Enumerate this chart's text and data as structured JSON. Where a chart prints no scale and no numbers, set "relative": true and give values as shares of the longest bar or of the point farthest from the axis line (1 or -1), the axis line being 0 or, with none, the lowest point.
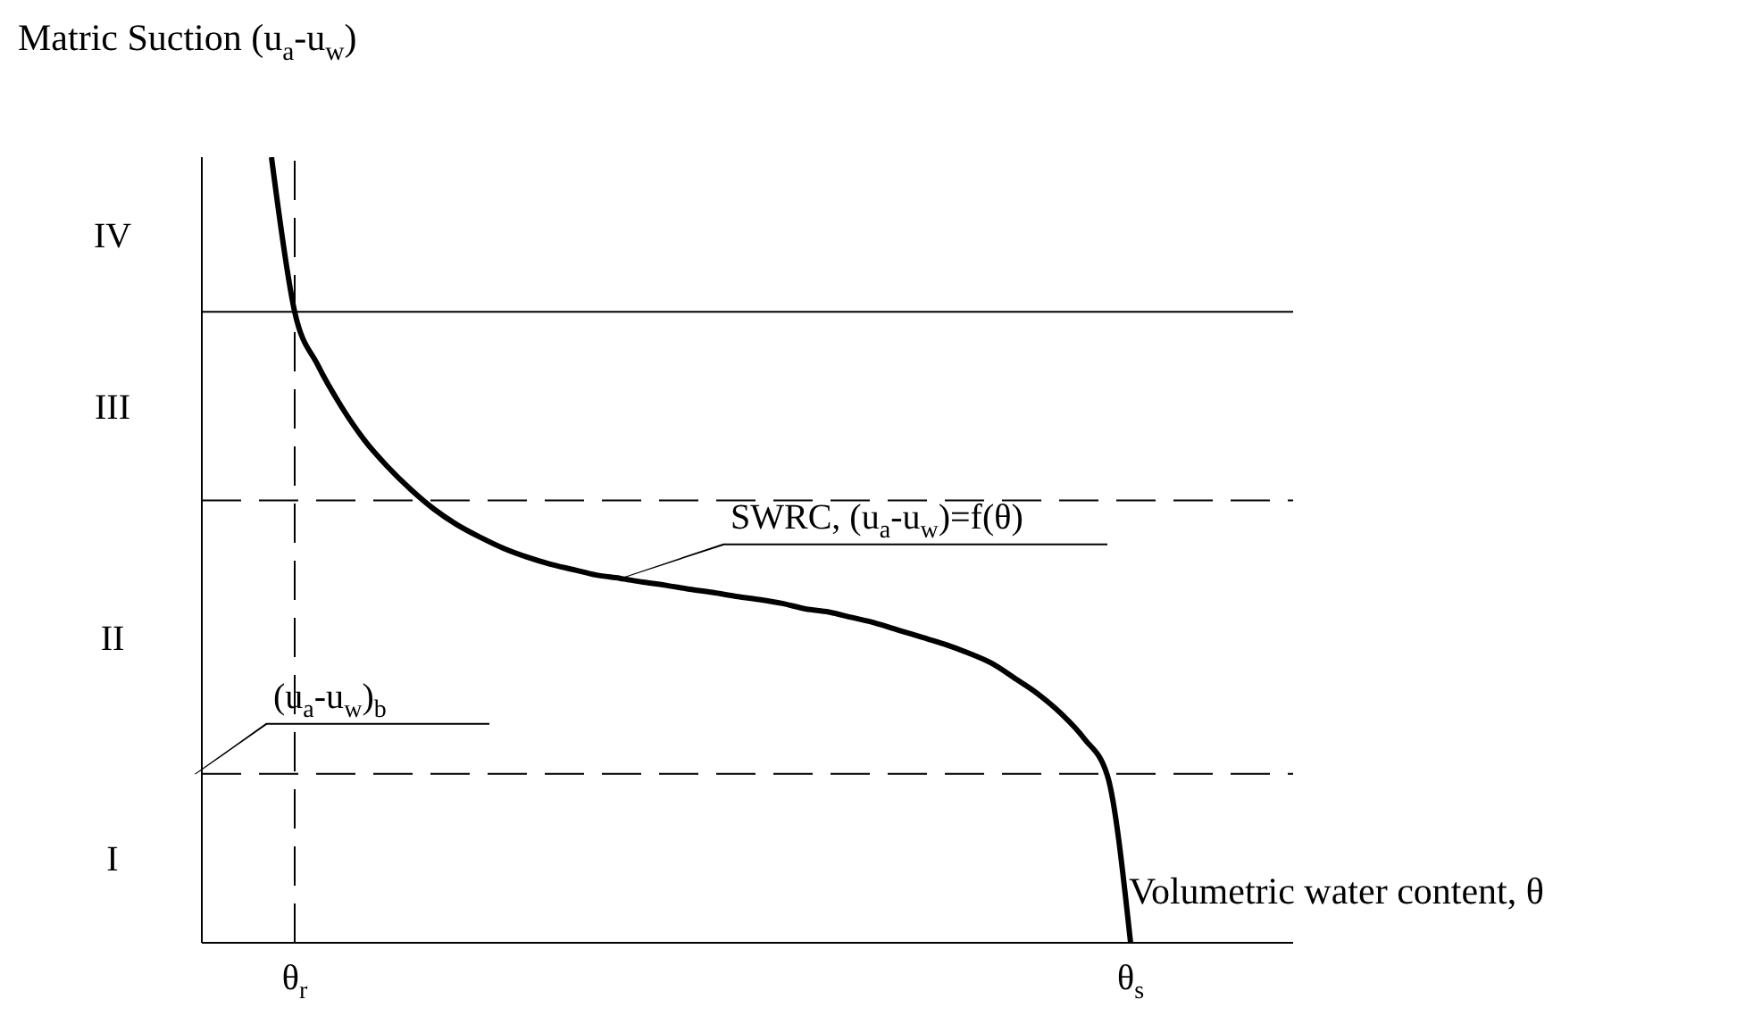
{
  "chart_data": {
    "type": "line",
    "relative": true,
    "xlabel": "Volumetric water content, θ",
    "ylabel": "Matric Suction (u$_{a}$-u$_{w}$)",
    "categories": [
      null,
      null,
      null,
      null,
      "θ$_{r}$",
      null,
      null,
      null,
      null,
      null,
      null,
      null,
      null,
      null,
      null,
      null,
      null,
      null,
      null,
      null,
      null,
      null,
      null,
      null,
      null,
      null,
      null,
      null,
      null,
      null,
      null,
      null,
      null,
      null,
      null,
      null,
      null,
      null,
      null,
      null,
      "θ$_{s}$",
      null,
      null,
      null,
      null,
      null,
      null,
      null
    ],
    "series": [
      {
        "color": "#000000",
        "values": [
          null,
          null,
          null,
          1.0,
          0.803,
          0.735,
          0.683,
          0.64,
          0.606,
          0.577,
          0.552,
          0.532,
          0.516,
          0.502,
          0.491,
          0.482,
          0.475,
          0.468,
          0.464,
          0.459,
          0.455,
          0.45,
          0.446,
          0.441,
          0.437,
          0.432,
          0.425,
          0.421,
          0.414,
          0.407,
          0.398,
          0.389,
          0.38,
          0.369,
          0.356,
          0.337,
          0.317,
          0.292,
          0.26,
          0.213,
          0,
          null,
          null,
          null,
          null,
          null,
          null,
          null
        ]
      }
    ],
    "marker": "none",
    "line_style": "solid",
    "grid": false,
    "legend": false,
    "ref_lines": [
      {
        "axis": "y",
        "value": 0.215,
        "line_style": "dashed"
      },
      {
        "axis": "y",
        "value": 0.563,
        "line_style": "dashed"
      },
      {
        "axis": "y",
        "value": 0.803,
        "line_style": "solid"
      },
      {
        "axis": "x",
        "value": "θ$_{r}$",
        "line_style": "dashed"
      }
    ],
    "annotations": [
      "SWRC, (u$_{a}$-u$_{w}$)=f(θ)",
      "I",
      "II",
      "III",
      "IV",
      {
        "text": "(u$_{a}$-u$_{w}$)$_{b}$",
        "y": 0.215
      }
    ]
  }
}
